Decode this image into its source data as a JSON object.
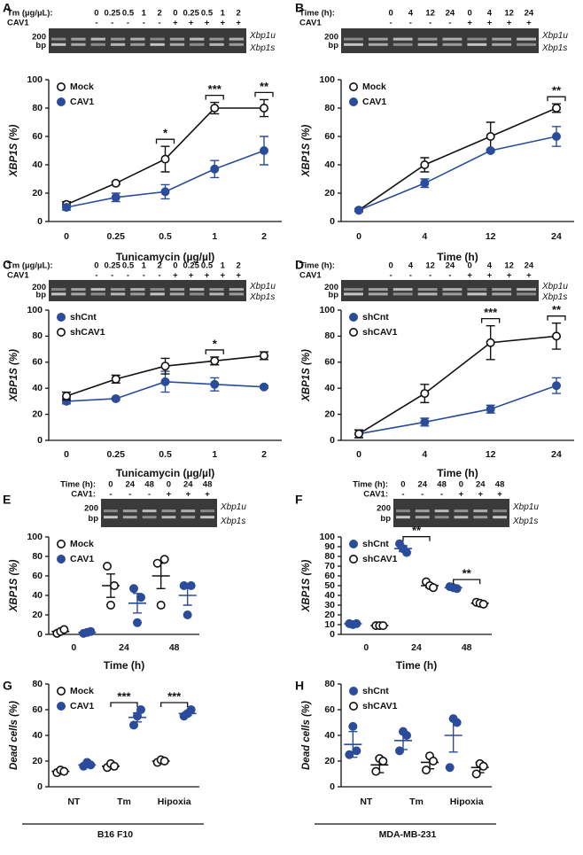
{
  "chart_data": [
    {
      "panel": "A",
      "type": "line",
      "gel": {
        "rows": [
          {
            "label": "Tm (µg/µL):",
            "cells": [
              "0",
              "0.25",
              "0.5",
              "1",
              "2",
              "0",
              "0.25",
              "0.5",
              "1",
              "2"
            ]
          },
          {
            "label": "CAV1",
            "cells": [
              "-",
              "-",
              "-",
              "-",
              "-",
              "+",
              "+",
              "+",
              "+",
              "+"
            ]
          }
        ],
        "marker": [
          "200",
          "bp"
        ],
        "bands": [
          "Xbp1u",
          "Xbp1s"
        ]
      },
      "ylabel": "XBP1S  (%)",
      "xlabel": "Tunicamycin (µg/µl)",
      "categories": [
        "0",
        "0.25",
        "0.5",
        "1",
        "2"
      ],
      "ylim": [
        0,
        100
      ],
      "yticks": [
        0,
        20,
        40,
        60,
        80,
        100
      ],
      "legend": "upper left",
      "series": [
        {
          "name": "Mock",
          "color": "#111111",
          "marker": "open",
          "values": [
            12,
            27,
            44,
            80,
            80
          ],
          "errors": [
            2,
            1,
            9,
            4,
            6
          ]
        },
        {
          "name": "CAV1",
          "color": "#2b4c9b",
          "marker": "filled",
          "values": [
            10,
            17,
            21,
            37,
            50
          ],
          "errors": [
            2,
            3,
            5,
            6,
            10
          ]
        }
      ],
      "annotations": [
        {
          "text": "*",
          "category": "0.5"
        },
        {
          "text": "***",
          "category": "1"
        },
        {
          "text": "**",
          "category": "2"
        }
      ]
    },
    {
      "panel": "B",
      "type": "line",
      "gel": {
        "rows": [
          {
            "label": "Time (h):",
            "cells": [
              "0",
              "4",
              "12",
              "24",
              "0",
              "4",
              "12",
              "24"
            ]
          },
          {
            "label": "CAV1",
            "cells": [
              "-",
              "-",
              "-",
              "-",
              "+",
              "+",
              "+",
              "+"
            ]
          }
        ],
        "marker": [
          "200",
          "bp"
        ],
        "bands": [
          "Xbp1u",
          "Xbp1s"
        ]
      },
      "ylabel": "XBP1S  (%)",
      "xlabel": "Time (h)",
      "categories": [
        "0",
        "4",
        "12",
        "24"
      ],
      "ylim": [
        0,
        100
      ],
      "yticks": [
        0,
        20,
        40,
        60,
        80,
        100
      ],
      "legend": "upper left",
      "series": [
        {
          "name": "Mock",
          "color": "#111111",
          "marker": "open",
          "values": [
            8,
            40,
            60,
            80
          ],
          "errors": [
            1,
            5,
            10,
            3
          ]
        },
        {
          "name": "CAV1",
          "color": "#2b4c9b",
          "marker": "filled",
          "values": [
            8,
            27,
            50,
            60
          ],
          "errors": [
            1,
            3,
            1,
            7
          ]
        }
      ],
      "annotations": [
        {
          "text": "**",
          "category": "24"
        }
      ]
    },
    {
      "panel": "C",
      "type": "line",
      "gel": {
        "rows": [
          {
            "label": "Tm (µg/µL):",
            "cells": [
              "0",
              "0.25",
              "0.5",
              "1",
              "2",
              "0",
              "0.25",
              "0.5",
              "1",
              "2"
            ]
          },
          {
            "label": "CAV1",
            "cells": [
              "-",
              "-",
              "-",
              "-",
              "-",
              "+",
              "+",
              "+",
              "+",
              "+"
            ]
          }
        ],
        "marker": [
          "200",
          "bp"
        ],
        "bands": [
          "Xbp1u",
          "Xbp1s"
        ]
      },
      "ylabel": "XBP1S  (%)",
      "xlabel": "Tunicamycin (µg/µl)",
      "categories": [
        "0",
        "0.25",
        "0.5",
        "1",
        "2"
      ],
      "ylim": [
        0,
        100
      ],
      "yticks": [
        0,
        20,
        40,
        60,
        80,
        100
      ],
      "legend": "upper left",
      "series": [
        {
          "name": "shCnt",
          "color": "#2b4c9b",
          "marker": "filled",
          "values": [
            30,
            32,
            45,
            43,
            41
          ],
          "errors": [
            2,
            1,
            8,
            5,
            1
          ]
        },
        {
          "name": "shCAV1",
          "color": "#111111",
          "marker": "open",
          "values": [
            34,
            47,
            57,
            61,
            65
          ],
          "errors": [
            3,
            3,
            6,
            3,
            3
          ]
        }
      ],
      "annotations": [
        {
          "text": "*",
          "category": "1"
        }
      ]
    },
    {
      "panel": "D",
      "type": "line",
      "gel": {
        "rows": [
          {
            "label": "Time (h):",
            "cells": [
              "0",
              "4",
              "12",
              "24",
              "0",
              "4",
              "12",
              "24"
            ]
          },
          {
            "label": "CAV1",
            "cells": [
              "-",
              "-",
              "-",
              "-",
              "+",
              "+",
              "+",
              "+"
            ]
          }
        ],
        "marker": [
          "200",
          "bp"
        ],
        "bands": [
          "Xbp1u",
          "Xbp1s"
        ]
      },
      "ylabel": "XBP1S  (%)",
      "xlabel": "Time (h)",
      "categories": [
        "0",
        "4",
        "12",
        "24"
      ],
      "ylim": [
        0,
        100
      ],
      "yticks": [
        0,
        20,
        40,
        60,
        80,
        100
      ],
      "legend": "upper left",
      "series": [
        {
          "name": "shCnt",
          "color": "#2b4c9b",
          "marker": "filled",
          "values": [
            5,
            14,
            24,
            42
          ],
          "errors": [
            3,
            3,
            3,
            6
          ]
        },
        {
          "name": "shCAV1",
          "color": "#111111",
          "marker": "open",
          "values": [
            5,
            36,
            75,
            80
          ],
          "errors": [
            3,
            7,
            13,
            10
          ]
        }
      ],
      "annotations": [
        {
          "text": "***",
          "category": "12"
        },
        {
          "text": "**",
          "category": "24"
        }
      ]
    },
    {
      "panel": "E",
      "type": "scatter",
      "gel": {
        "rows": [
          {
            "label": "Time (h):",
            "cells": [
              "0",
              "24",
              "48",
              "0",
              "24",
              "48"
            ]
          },
          {
            "label": "CAV1:",
            "cells": [
              "-",
              "-",
              "-",
              "+",
              "+",
              "+"
            ]
          }
        ],
        "marker": [
          "200",
          "bp"
        ],
        "bands": [
          "Xbp1u",
          "Xbp1s"
        ]
      },
      "ylabel": "XBP1S (%)",
      "xlabel": "Time (h)",
      "categories": [
        "0",
        "24",
        "48"
      ],
      "ylim": [
        0,
        100
      ],
      "yticks": [
        0,
        20,
        40,
        60,
        80,
        100
      ],
      "legend": "upper left",
      "series": [
        {
          "name": "Mock",
          "color": "#111111",
          "marker": "open",
          "values": [
            3,
            50,
            60
          ],
          "errors": [
            2,
            12,
            13
          ],
          "points": [
            [
              1,
              3,
              5
            ],
            [
              70,
              30,
              50
            ],
            [
              73,
              30,
              77
            ]
          ]
        },
        {
          "name": "CAV1",
          "color": "#2b4c9b",
          "marker": "filled",
          "values": [
            2,
            32,
            40
          ],
          "errors": [
            1,
            10,
            10
          ],
          "points": [
            [
              1,
              2,
              3
            ],
            [
              47,
              12,
              38
            ],
            [
              50,
              20,
              50
            ]
          ]
        }
      ],
      "annotations": []
    },
    {
      "panel": "F",
      "type": "scatter",
      "gel": {
        "rows": [
          {
            "label": "Time (h):",
            "cells": [
              "0",
              "24",
              "48",
              "0",
              "24",
              "48"
            ]
          },
          {
            "label": "CAV1:",
            "cells": [
              "-",
              "-",
              "-",
              "+",
              "+",
              "+"
            ]
          }
        ],
        "marker": [
          "200",
          "bp"
        ],
        "bands": [
          "Xbp1u",
          "Xbp1s"
        ]
      },
      "ylabel": "XBP1S (%)",
      "xlabel": "Time (h)",
      "categories": [
        "0",
        "24",
        "48"
      ],
      "ylim": [
        0,
        100
      ],
      "yticks": [
        0,
        10,
        20,
        30,
        40,
        50,
        60,
        70,
        80,
        90,
        100
      ],
      "legend": "upper left",
      "series": [
        {
          "name": "shCnt",
          "color": "#2b4c9b",
          "marker": "filled",
          "values": [
            11,
            88,
            48
          ],
          "errors": [
            0.5,
            3,
            1
          ],
          "points": [
            [
              11,
              10,
              11
            ],
            [
              93,
              88,
              84
            ],
            [
              49,
              48,
              47
            ]
          ]
        },
        {
          "name": "shCAV1",
          "color": "#111111",
          "marker": "open",
          "values": [
            9,
            50,
            32
          ],
          "errors": [
            0.5,
            2,
            1
          ],
          "points": [
            [
              9,
              9,
              9
            ],
            [
              54,
              50,
              48
            ],
            [
              33,
              32,
              31
            ]
          ]
        }
      ],
      "annotations": [
        {
          "text": "**",
          "category": "24"
        },
        {
          "text": "**",
          "category": "48"
        }
      ]
    },
    {
      "panel": "G",
      "type": "scatter",
      "ylabel": "Dead cells (%)",
      "group_label": "B16 F10",
      "categories": [
        "NT",
        "Tm",
        "Hipoxia"
      ],
      "ylim": [
        0,
        80
      ],
      "yticks": [
        0,
        20,
        40,
        60,
        80
      ],
      "legend": "upper left",
      "series": [
        {
          "name": "Mock",
          "color": "#111111",
          "marker": "open",
          "values": [
            12,
            16,
            20
          ],
          "errors": [
            1,
            2,
            1
          ],
          "points": [
            [
              11,
              13,
              12
            ],
            [
              15,
              18,
              16
            ],
            [
              19,
              21,
              20
            ]
          ]
        },
        {
          "name": "CAV1",
          "color": "#2b4c9b",
          "marker": "filled",
          "values": [
            17,
            54,
            57
          ],
          "errors": [
            1,
            3.5,
            1.5
          ],
          "points": [
            [
              16,
              19,
              17
            ],
            [
              48,
              55,
              60
            ],
            [
              55,
              57,
              60
            ]
          ]
        }
      ],
      "annotations": [
        {
          "text": "***",
          "category": "Tm"
        },
        {
          "text": "***",
          "category": "Hipoxia"
        }
      ]
    },
    {
      "panel": "H",
      "type": "scatter",
      "ylabel": "Dead cells (%)",
      "group_label": "MDA-MB-231",
      "categories": [
        "NT",
        "Tm",
        "Hipoxia"
      ],
      "ylim": [
        0,
        80
      ],
      "yticks": [
        0,
        20,
        40,
        60,
        80
      ],
      "legend": "upper left",
      "series": [
        {
          "name": "shCnt",
          "color": "#2b4c9b",
          "marker": "filled",
          "values": [
            33,
            36,
            40
          ],
          "errors": [
            10,
            7,
            13
          ],
          "points": [
            [
              25,
              47,
              28
            ],
            [
              28,
              43,
              40
            ],
            [
              15,
              53,
              50
            ]
          ]
        },
        {
          "name": "shCAV1",
          "color": "#111111",
          "marker": "open",
          "values": [
            17,
            19,
            15
          ],
          "errors": [
            6,
            5,
            4
          ],
          "points": [
            [
              12,
              22,
              20
            ],
            [
              13,
              24,
              20
            ],
            [
              10,
              18,
              16
            ]
          ]
        }
      ],
      "annotations": []
    }
  ]
}
